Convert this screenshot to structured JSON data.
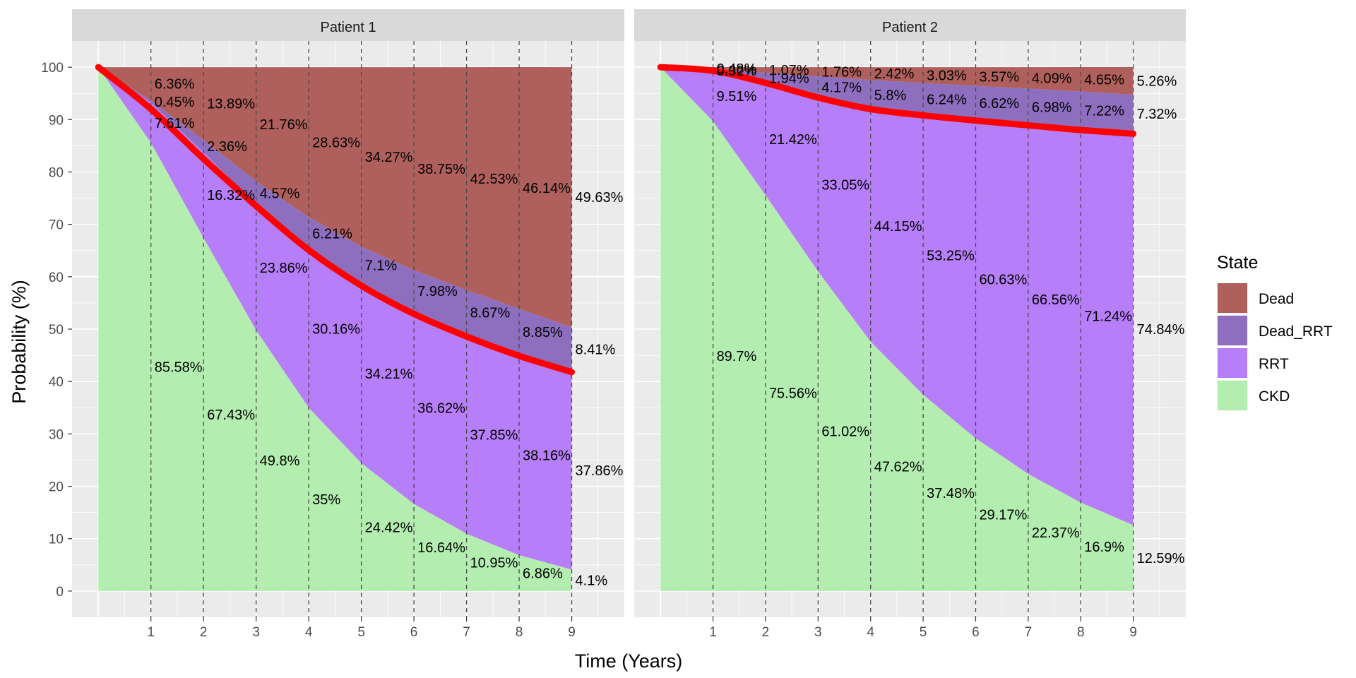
{
  "chart_data": {
    "type": "area",
    "xlabel": "Time (Years)",
    "ylabel": "Probability (%)",
    "xlim": [
      -0.5,
      10
    ],
    "ylim": [
      -5,
      105
    ],
    "x_ticks": [
      1,
      2,
      3,
      4,
      5,
      6,
      7,
      8,
      9
    ],
    "y_ticks": [
      0,
      10,
      20,
      30,
      40,
      50,
      60,
      70,
      80,
      90,
      100
    ],
    "grid": true,
    "stacked": true,
    "legend": {
      "title": "State",
      "position": "right",
      "entries": [
        "Dead",
        "Dead_RRT",
        "RRT",
        "CKD"
      ]
    },
    "colors": {
      "Dead": "#b0605c",
      "Dead_RRT": "#8e6fbf",
      "RRT": "#b67ef8",
      "CKD": "#b3eeb0",
      "survival_line": "#ff0000",
      "panel_background": "#ebebeb",
      "strip_background": "#d9d9d9"
    },
    "panels": [
      {
        "strip": "Patient 1",
        "x": [
          0,
          1,
          2,
          3,
          4,
          5,
          6,
          7,
          8,
          9
        ],
        "series": [
          {
            "name": "CKD",
            "values": [
              100,
              85.58,
              67.43,
              49.8,
              35,
              24.42,
              16.64,
              10.95,
              6.86,
              4.1
            ]
          },
          {
            "name": "RRT",
            "values": [
              0,
              7.61,
              16.32,
              23.86,
              30.16,
              34.21,
              36.62,
              37.85,
              38.16,
              37.86
            ]
          },
          {
            "name": "Dead_RRT",
            "values": [
              0,
              0.45,
              2.36,
              4.57,
              6.21,
              7.1,
              7.98,
              8.67,
              8.85,
              8.41
            ]
          },
          {
            "name": "Dead",
            "values": [
              0,
              6.36,
              13.89,
              21.76,
              28.63,
              34.27,
              38.75,
              42.53,
              46.14,
              49.63
            ]
          }
        ],
        "survival": [
          100,
          92.0,
          82.5,
          73.5,
          65.1,
          58.3,
          52.9,
          48.6,
          44.9,
          41.8
        ],
        "labels": {
          "CKD": [
            "85.58%",
            "67.43%",
            "49.8%",
            "35%",
            "24.42%",
            "16.64%",
            "10.95%",
            "6.86%",
            "4.1%"
          ],
          "RRT": [
            "7.61%",
            "16.32%",
            "23.86%",
            "30.16%",
            "34.21%",
            "36.62%",
            "37.85%",
            "38.16%",
            "37.86%"
          ],
          "Dead_RRT": [
            "0.45%",
            "2.36%",
            "4.57%",
            "6.21%",
            "7.1%",
            "7.98%",
            "8.67%",
            "8.85%",
            "8.41%"
          ],
          "Dead": [
            "6.36%",
            "13.89%",
            "21.76%",
            "28.63%",
            "34.27%",
            "38.75%",
            "42.53%",
            "46.14%",
            "49.63%"
          ]
        }
      },
      {
        "strip": "Patient 2",
        "x": [
          0,
          1,
          2,
          3,
          4,
          5,
          6,
          7,
          8,
          9
        ],
        "series": [
          {
            "name": "CKD",
            "values": [
              100,
              89.7,
              75.56,
              61.02,
              47.62,
              37.48,
              29.17,
              22.37,
              16.9,
              12.59
            ]
          },
          {
            "name": "RRT",
            "values": [
              0,
              9.51,
              21.42,
              33.05,
              44.15,
              53.25,
              60.63,
              66.56,
              71.24,
              74.84
            ]
          },
          {
            "name": "Dead_RRT",
            "values": [
              0,
              0.32,
              1.94,
              4.17,
              5.8,
              6.24,
              6.62,
              6.98,
              7.22,
              7.32
            ]
          },
          {
            "name": "Dead",
            "values": [
              0,
              0.48,
              1.07,
              1.76,
              2.42,
              3.03,
              3.57,
              4.09,
              4.65,
              5.26
            ]
          }
        ],
        "survival": [
          100,
          99.3,
          97.0,
          94.2,
          92.0,
          90.8,
          89.8,
          88.9,
          88.0,
          87.3
        ],
        "labels": {
          "CKD": [
            "89.7%",
            "75.56%",
            "61.02%",
            "47.62%",
            "37.48%",
            "29.17%",
            "22.37%",
            "16.9%",
            "12.59%"
          ],
          "RRT": [
            "9.51%",
            "21.42%",
            "33.05%",
            "44.15%",
            "53.25%",
            "60.63%",
            "66.56%",
            "71.24%",
            "74.84%"
          ],
          "Dead_RRT": [
            "0.32%",
            "1.94%",
            "4.17%",
            "5.8%",
            "6.24%",
            "6.62%",
            "6.98%",
            "7.22%",
            "7.32%"
          ],
          "Dead": [
            "0.48%",
            "1.07%",
            "1.76%",
            "2.42%",
            "3.03%",
            "3.57%",
            "4.09%",
            "4.65%",
            "5.26%"
          ]
        }
      }
    ]
  }
}
